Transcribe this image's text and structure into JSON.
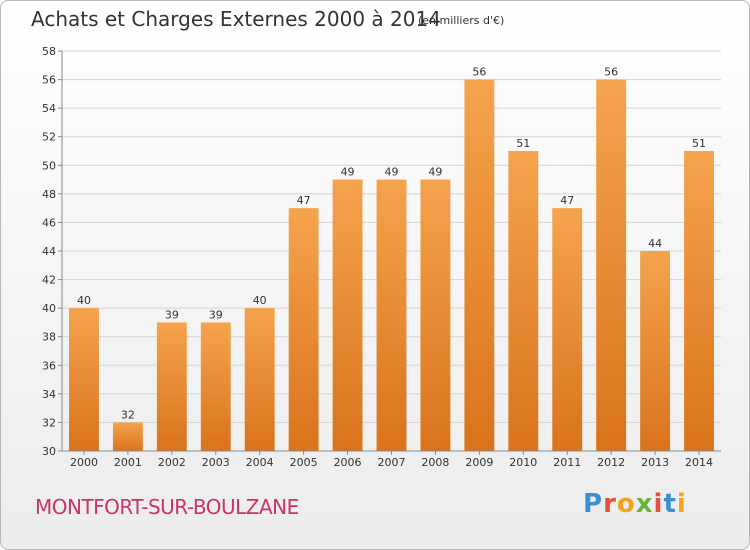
{
  "header": {
    "title": "Achats et Charges Externes 2000 à 2014",
    "subtitle": "(en milliers d'€)"
  },
  "footer": {
    "commune": "MONTFORT-SUR-BOULZANE",
    "logo_letters": [
      "P",
      "r",
      "o",
      "x",
      "i",
      "t",
      "i"
    ],
    "logo_colors": [
      "#3b8fd0",
      "#e84e3c",
      "#f2a51c",
      "#6ab33e",
      "#e84e3c",
      "#3b8fd0",
      "#f2a51c"
    ]
  },
  "chart_data": {
    "type": "bar",
    "categories": [
      "2000",
      "2001",
      "2002",
      "2003",
      "2004",
      "2005",
      "2006",
      "2007",
      "2008",
      "2009",
      "2010",
      "2011",
      "2012",
      "2013",
      "2014"
    ],
    "values": [
      40,
      32,
      39,
      39,
      40,
      47,
      49,
      49,
      49,
      56,
      51,
      47,
      56,
      44,
      51
    ],
    "data_labels": [
      "40",
      "32",
      "39",
      "39",
      "40",
      "47",
      "49",
      "49",
      "49",
      "56",
      "51",
      "47",
      "56",
      "44",
      "51"
    ],
    "yticks": [
      "30",
      "32",
      "34",
      "36",
      "38",
      "40",
      "42",
      "44",
      "46",
      "48",
      "50",
      "52",
      "54",
      "56",
      "58"
    ],
    "ylim": [
      30,
      58
    ],
    "grid": true,
    "bar_color_light": "#f5a34d",
    "bar_color_dark": "#d9731c",
    "grid_color": "#d4d4d4"
  }
}
